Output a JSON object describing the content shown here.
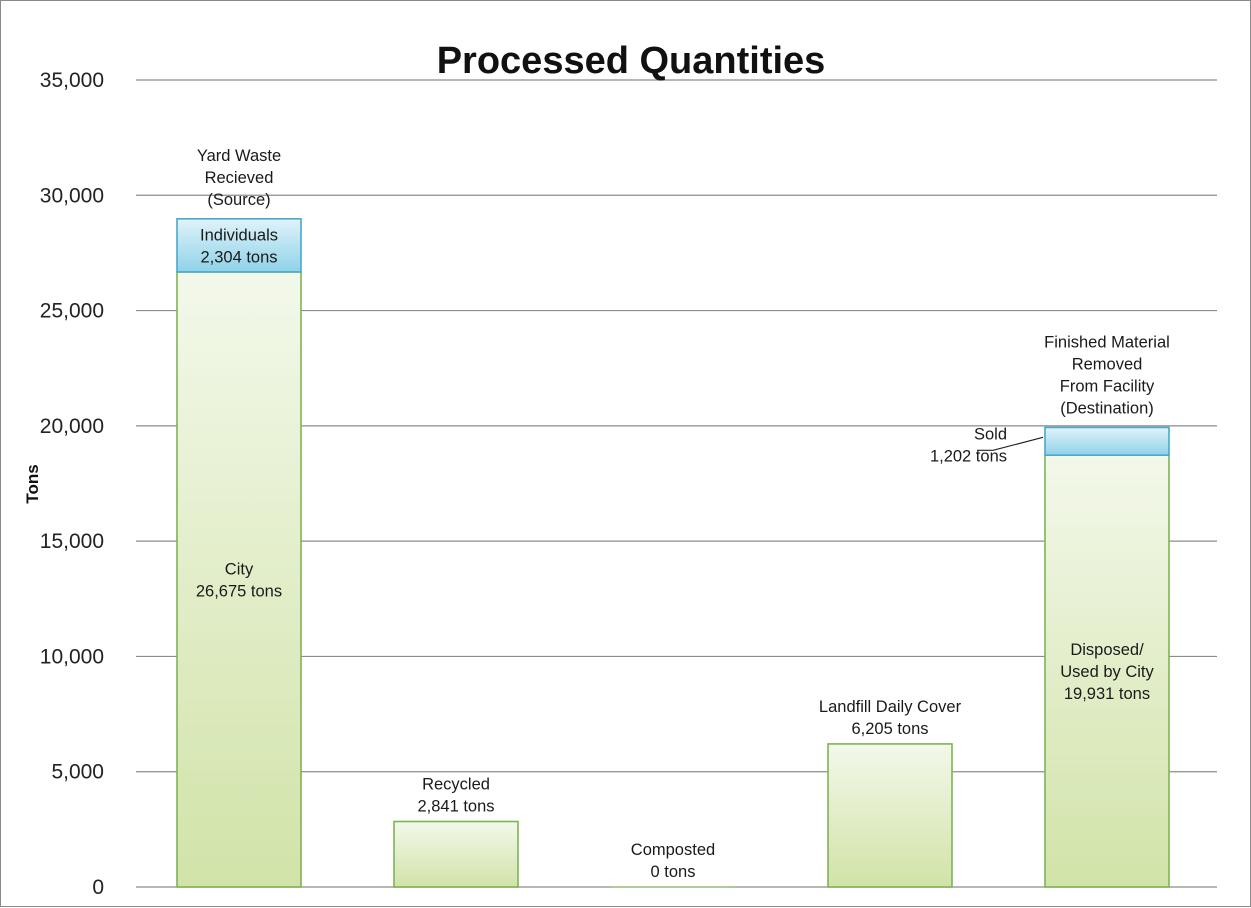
{
  "chart_data": {
    "type": "bar",
    "stacked": true,
    "title": "Processed Quantities",
    "ylabel": "Tons",
    "xlabel": "",
    "ylim": [
      0,
      35000
    ],
    "yticks": [
      0,
      5000,
      10000,
      15000,
      20000,
      25000,
      30000,
      35000
    ],
    "ytick_labels": [
      "0",
      "5,000",
      "10,000",
      "15,000",
      "20,000",
      "25,000",
      "30,000",
      "35,000"
    ],
    "grid": true,
    "legend": "none",
    "colors": {
      "main_fill_top": "#f3f8ea",
      "main_fill_bottom": "#d1e3a8",
      "main_stroke": "#7fb356",
      "top_fill_top": "#e0f3fa",
      "top_fill_bottom": "#8fd2e8",
      "top_stroke": "#4aa8c8",
      "grid": "#8c8c8c"
    },
    "bars": [
      {
        "segments": [
          {
            "value": 26675,
            "style": "main",
            "label": [
              "City",
              "26,675 tons"
            ]
          },
          {
            "value": 2304,
            "style": "top",
            "label": [
              "Individuals",
              "2,304 tons"
            ]
          }
        ],
        "annotation": [
          "Yard Waste",
          "Recieved",
          "(Source)"
        ]
      },
      {
        "segments": [
          {
            "value": 2841,
            "style": "main",
            "label": [
              "Recycled",
              "2,841 tons"
            ],
            "label_pos": "above"
          }
        ]
      },
      {
        "segments": [
          {
            "value": 0,
            "style": "main",
            "label": [
              "Composted",
              "0 tons"
            ],
            "label_pos": "above"
          }
        ]
      },
      {
        "segments": [
          {
            "value": 6205,
            "style": "main",
            "label": [
              "Landfill Daily Cover",
              "6,205 tons"
            ],
            "label_pos": "above"
          }
        ]
      },
      {
        "segments": [
          {
            "value": 18729,
            "style": "main",
            "label": [
              "Disposed/",
              "Used by City",
              "19,931 tons"
            ]
          },
          {
            "value": 1202,
            "style": "top",
            "label": [
              "Sold",
              "1,202 tons"
            ],
            "label_pos": "callout-left"
          }
        ],
        "annotation": [
          "Finished Material",
          "Removed",
          "From Facility",
          "(Destination)"
        ]
      }
    ]
  }
}
